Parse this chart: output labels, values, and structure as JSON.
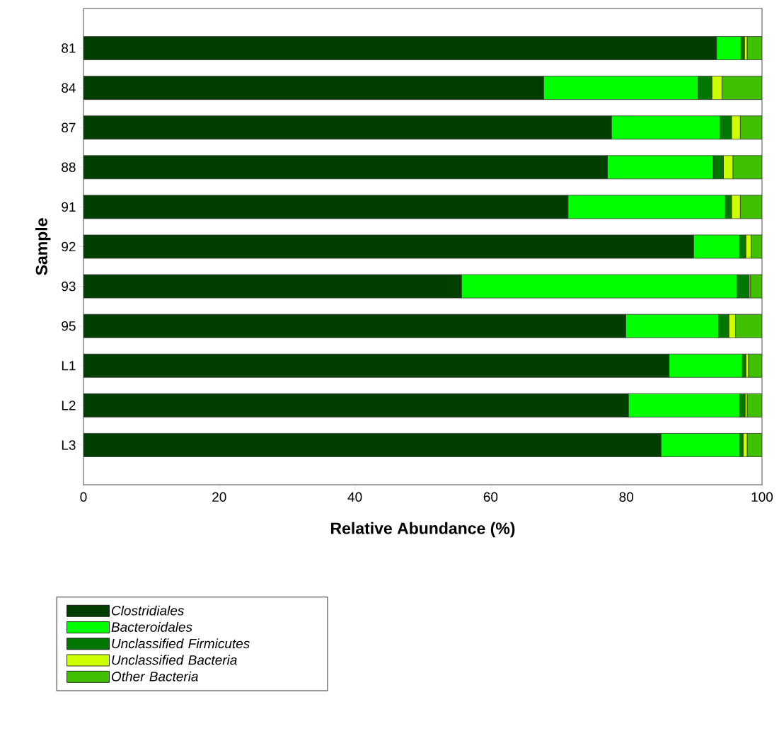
{
  "chart_data": {
    "type": "bar",
    "orientation": "horizontal",
    "stacked": true,
    "xlabel": "Relative Abundance (%)",
    "ylabel": "Sample",
    "categories": [
      "81",
      "84",
      "87",
      "88",
      "91",
      "92",
      "93",
      "95",
      "L1",
      "L2",
      "L3"
    ],
    "xlim": [
      0,
      100
    ],
    "xticks": [
      0,
      20,
      40,
      60,
      80,
      100
    ],
    "legend": "bottom left",
    "series": [
      {
        "name": "Clostridiales",
        "color": "#003f00",
        "values": [
          93.3,
          67.8,
          77.8,
          77.2,
          71.4,
          89.9,
          55.7,
          79.9,
          86.3,
          80.3,
          85.1
        ]
      },
      {
        "name": "Bacteroidales",
        "color": "#00ff00",
        "values": [
          3.6,
          22.8,
          16.0,
          15.6,
          23.2,
          6.8,
          40.6,
          13.7,
          10.8,
          16.4,
          11.6
        ]
      },
      {
        "name": "Unclassified Firmicutes",
        "color": "#007700",
        "values": [
          0.5,
          2.0,
          1.7,
          1.5,
          0.9,
          0.9,
          1.8,
          1.5,
          0.5,
          0.8,
          0.5
        ]
      },
      {
        "name": "Unclassified Bacteria",
        "color": "#ccff00",
        "values": [
          0.4,
          1.5,
          1.3,
          1.4,
          1.3,
          0.8,
          0.2,
          1.0,
          0.4,
          0.3,
          0.6
        ]
      },
      {
        "name": "Other Bacteria",
        "color": "#40c000",
        "values": [
          2.2,
          5.9,
          3.2,
          4.3,
          3.2,
          1.6,
          1.7,
          3.9,
          2.0,
          2.2,
          2.2
        ]
      }
    ]
  }
}
